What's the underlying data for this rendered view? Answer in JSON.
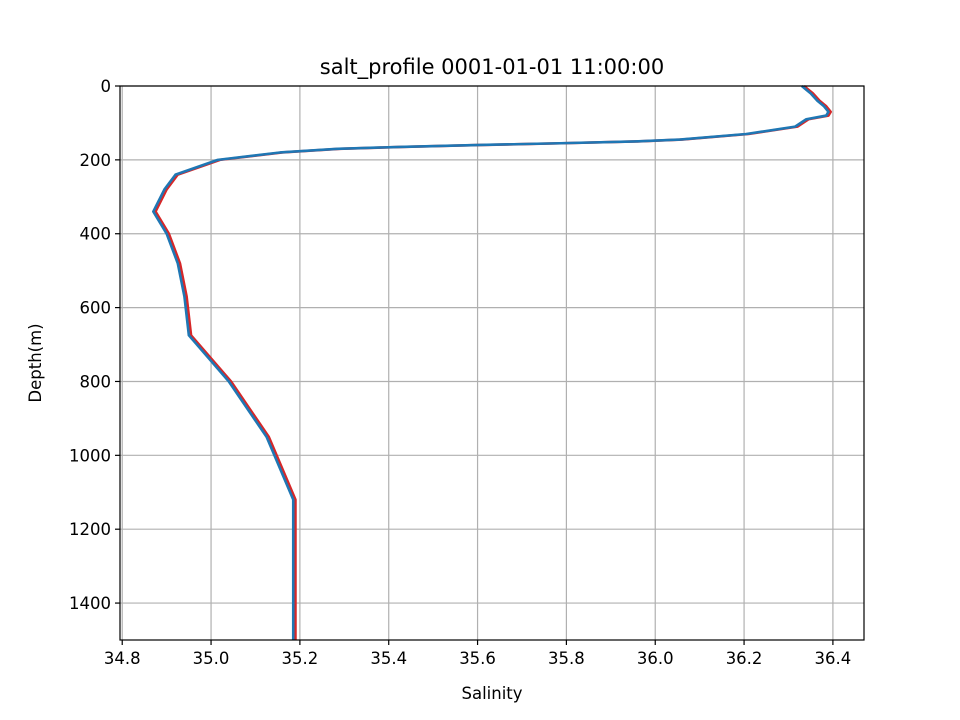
{
  "chart_data": {
    "type": "line",
    "title": "salt_profile 0001-01-01 11:00:00",
    "xlabel": "Salinity",
    "ylabel": "Depth(m)",
    "xlim": [
      34.795,
      36.47
    ],
    "ylim": [
      1500,
      0
    ],
    "y_inverted": true,
    "grid": true,
    "xticks": [
      "34.8",
      "35.0",
      "35.2",
      "35.4",
      "35.6",
      "35.8",
      "36.0",
      "36.2",
      "36.4"
    ],
    "yticks": [
      "0",
      "200",
      "400",
      "600",
      "800",
      "1000",
      "1200",
      "1400"
    ],
    "series": [
      {
        "color": "#d62728",
        "x": [
          36.335,
          36.345,
          36.355,
          36.37,
          36.385,
          36.395,
          36.39,
          36.345,
          36.32,
          36.21,
          36.06,
          35.96,
          35.79,
          35.6,
          35.43,
          35.29,
          35.16,
          35.02,
          34.925,
          34.9,
          34.875,
          34.905,
          34.93,
          34.945,
          34.955,
          35.045,
          35.13,
          35.19,
          35.19,
          35.19,
          35.19
        ],
        "y": [
          0,
          10,
          20,
          40,
          55,
          70,
          80,
          90,
          110,
          130,
          145,
          150,
          155,
          160,
          165,
          170,
          180,
          200,
          240,
          280,
          340,
          400,
          480,
          570,
          675,
          800,
          950,
          1120,
          1200,
          1400,
          1500
        ]
      },
      {
        "color": "#1f77b4",
        "x": [
          36.33,
          36.34,
          36.35,
          36.365,
          36.38,
          36.39,
          36.385,
          36.34,
          36.315,
          36.205,
          36.055,
          35.955,
          35.785,
          35.595,
          35.425,
          35.285,
          35.155,
          35.015,
          34.92,
          34.895,
          34.87,
          34.9,
          34.925,
          34.94,
          34.95,
          35.04,
          35.125,
          35.185,
          35.185,
          35.185,
          35.185
        ],
        "y": [
          0,
          10,
          20,
          40,
          55,
          70,
          80,
          90,
          110,
          130,
          145,
          150,
          155,
          160,
          165,
          170,
          180,
          200,
          240,
          280,
          340,
          400,
          480,
          570,
          675,
          800,
          950,
          1120,
          1200,
          1400,
          1500
        ]
      }
    ]
  }
}
